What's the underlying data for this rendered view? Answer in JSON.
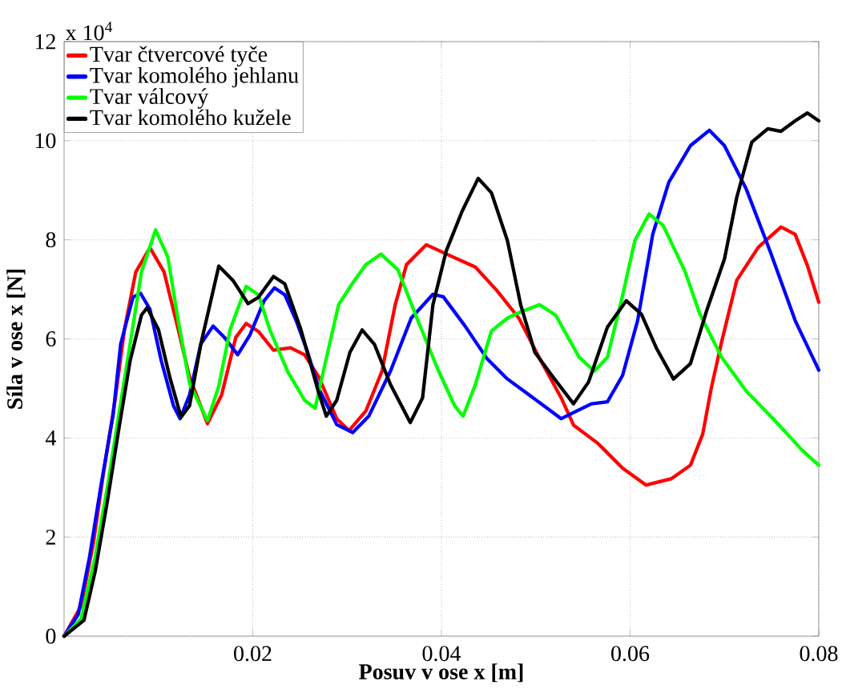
{
  "chart_data": {
    "type": "line",
    "xlabel": "Posuv v ose x [m]",
    "ylabel": "Síla v ose x [N]",
    "annotations": [
      "x 10$^{4}$"
    ],
    "xlim": [
      0,
      0.08
    ],
    "xticks": [
      0.02,
      0.04,
      0.06,
      0.08
    ],
    "ylim": [
      0,
      12
    ],
    "yticks": [
      0,
      2,
      4,
      6,
      8,
      10,
      12
    ],
    "grid": true,
    "legend": "top left",
    "series": [
      {
        "name": "Tvar čtvercové tyče",
        "color": "#ff0000",
        "x": [
          0,
          0.0018,
          0.0031,
          0.0042,
          0.0054,
          0.0064,
          0.0076,
          0.0091,
          0.0106,
          0.0121,
          0.0133,
          0.0152,
          0.0167,
          0.0182,
          0.0193,
          0.0206,
          0.0222,
          0.024,
          0.0255,
          0.027,
          0.0289,
          0.0302,
          0.032,
          0.0337,
          0.0351,
          0.0363,
          0.0384,
          0.0408,
          0.0436,
          0.0459,
          0.0482,
          0.0504,
          0.0527,
          0.054,
          0.0566,
          0.0592,
          0.0617,
          0.0644,
          0.0664,
          0.0677,
          0.0686,
          0.0697,
          0.0713,
          0.0736,
          0.076,
          0.0775,
          0.0788,
          0.08
        ],
        "values": [
          0,
          0.61,
          1.87,
          3.32,
          4.76,
          6.19,
          7.35,
          7.84,
          7.35,
          6.19,
          5.23,
          4.29,
          4.87,
          6.03,
          6.31,
          6.15,
          5.77,
          5.82,
          5.68,
          5.23,
          4.39,
          4.15,
          4.55,
          5.35,
          6.69,
          7.5,
          7.9,
          7.69,
          7.45,
          6.97,
          6.42,
          5.61,
          4.81,
          4.26,
          3.89,
          3.39,
          3.05,
          3.18,
          3.45,
          4.08,
          5.0,
          5.94,
          7.18,
          7.85,
          8.26,
          8.11,
          7.48,
          6.74
        ]
      },
      {
        "name": "Tvar komolého jehlanu",
        "color": "#0000ff",
        "x": [
          0,
          0.0015,
          0.0027,
          0.0039,
          0.0052,
          0.006,
          0.0073,
          0.0081,
          0.0091,
          0.0103,
          0.0116,
          0.0123,
          0.0133,
          0.0145,
          0.0158,
          0.017,
          0.0184,
          0.0197,
          0.0212,
          0.0223,
          0.0234,
          0.0246,
          0.0258,
          0.027,
          0.0289,
          0.0306,
          0.0323,
          0.0346,
          0.0368,
          0.0391,
          0.0402,
          0.0425,
          0.0448,
          0.047,
          0.0493,
          0.0527,
          0.0559,
          0.0576,
          0.0592,
          0.0608,
          0.0624,
          0.0641,
          0.0664,
          0.0684,
          0.07,
          0.0723,
          0.0749,
          0.0775,
          0.08
        ],
        "values": [
          0,
          0.44,
          1.6,
          3.03,
          4.47,
          5.9,
          6.84,
          6.92,
          6.6,
          5.56,
          4.65,
          4.39,
          4.87,
          5.9,
          6.26,
          6.03,
          5.68,
          6.08,
          6.77,
          7.03,
          6.89,
          6.37,
          5.74,
          5.0,
          4.27,
          4.11,
          4.44,
          5.35,
          6.42,
          6.9,
          6.85,
          6.26,
          5.61,
          5.19,
          4.87,
          4.39,
          4.69,
          4.73,
          5.26,
          6.37,
          8.11,
          9.16,
          9.9,
          10.21,
          9.9,
          9.03,
          7.74,
          6.37,
          5.37
        ]
      },
      {
        "name": "Tvar válcový",
        "color": "#00ff00",
        "x": [
          0,
          0.0018,
          0.0033,
          0.0046,
          0.0058,
          0.007,
          0.0082,
          0.0097,
          0.011,
          0.0121,
          0.0133,
          0.0152,
          0.0164,
          0.0176,
          0.0193,
          0.0206,
          0.0218,
          0.0237,
          0.0255,
          0.0266,
          0.0278,
          0.0291,
          0.0306,
          0.032,
          0.0336,
          0.0354,
          0.0374,
          0.0397,
          0.0414,
          0.0423,
          0.0436,
          0.0453,
          0.047,
          0.0482,
          0.0504,
          0.0521,
          0.0546,
          0.0562,
          0.0576,
          0.0592,
          0.0605,
          0.062,
          0.0635,
          0.0658,
          0.0674,
          0.0697,
          0.0723,
          0.0755,
          0.0782,
          0.08
        ],
        "values": [
          0,
          0.35,
          1.6,
          3.03,
          4.47,
          5.9,
          7.35,
          8.2,
          7.65,
          6.37,
          5.1,
          4.35,
          5.05,
          6.19,
          7.06,
          6.89,
          6.19,
          5.34,
          4.76,
          4.6,
          5.61,
          6.69,
          7.13,
          7.5,
          7.71,
          7.39,
          6.42,
          5.35,
          4.65,
          4.44,
          5.08,
          6.16,
          6.42,
          6.53,
          6.69,
          6.48,
          5.63,
          5.35,
          5.63,
          6.87,
          7.98,
          8.52,
          8.29,
          7.37,
          6.5,
          5.63,
          4.95,
          4.32,
          3.76,
          3.45
        ]
      },
      {
        "name": "Tvar komolého kužele",
        "color": "#000000",
        "x": [
          0,
          0.0021,
          0.0033,
          0.0046,
          0.0058,
          0.007,
          0.0082,
          0.0088,
          0.01,
          0.0112,
          0.0124,
          0.0133,
          0.0145,
          0.0164,
          0.0179,
          0.0195,
          0.0206,
          0.0222,
          0.0234,
          0.0251,
          0.0269,
          0.0278,
          0.0289,
          0.0303,
          0.0316,
          0.0329,
          0.0346,
          0.0367,
          0.038,
          0.0391,
          0.0405,
          0.0422,
          0.0439,
          0.0453,
          0.047,
          0.0484,
          0.0499,
          0.0516,
          0.054,
          0.0556,
          0.0576,
          0.0596,
          0.0612,
          0.0628,
          0.0646,
          0.0664,
          0.0681,
          0.07,
          0.0713,
          0.0729,
          0.0746,
          0.076,
          0.0775,
          0.0788,
          0.08
        ],
        "values": [
          0,
          0.32,
          1.31,
          2.74,
          4.18,
          5.56,
          6.48,
          6.63,
          6.19,
          5.23,
          4.42,
          4.65,
          5.9,
          7.47,
          7.18,
          6.71,
          6.84,
          7.26,
          7.11,
          6.19,
          4.97,
          4.44,
          4.76,
          5.73,
          6.18,
          5.89,
          5.08,
          4.31,
          4.81,
          6.69,
          7.77,
          8.58,
          9.24,
          8.95,
          7.98,
          6.69,
          5.73,
          5.29,
          4.69,
          5.13,
          6.24,
          6.77,
          6.5,
          5.81,
          5.19,
          5.5,
          6.56,
          7.61,
          8.85,
          9.97,
          10.24,
          10.19,
          10.4,
          10.56,
          10.4
        ]
      }
    ]
  }
}
